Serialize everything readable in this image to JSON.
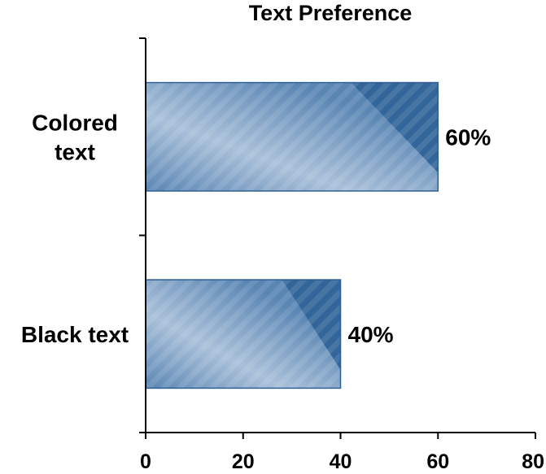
{
  "chart_data": {
    "type": "bar",
    "orientation": "horizontal",
    "title": "Text Preference",
    "categories": [
      [
        "Colored",
        "text"
      ],
      [
        "Black text"
      ]
    ],
    "values": [
      60,
      40
    ],
    "data_labels": [
      "60%",
      "40%"
    ],
    "xlabel": "",
    "ylabel": "",
    "xlim": [
      0,
      80
    ],
    "xticks": [
      0,
      20,
      40,
      60,
      80
    ],
    "xtick_labels": [
      "0",
      "20",
      "40",
      "60",
      "80"
    ],
    "grid": false,
    "legend": "none",
    "colors": {
      "bar_dark": "#32669b",
      "bar_mid": "#5a86b4",
      "bar_light": "#a9c0d9",
      "bar_border": "#2f5f93"
    }
  }
}
